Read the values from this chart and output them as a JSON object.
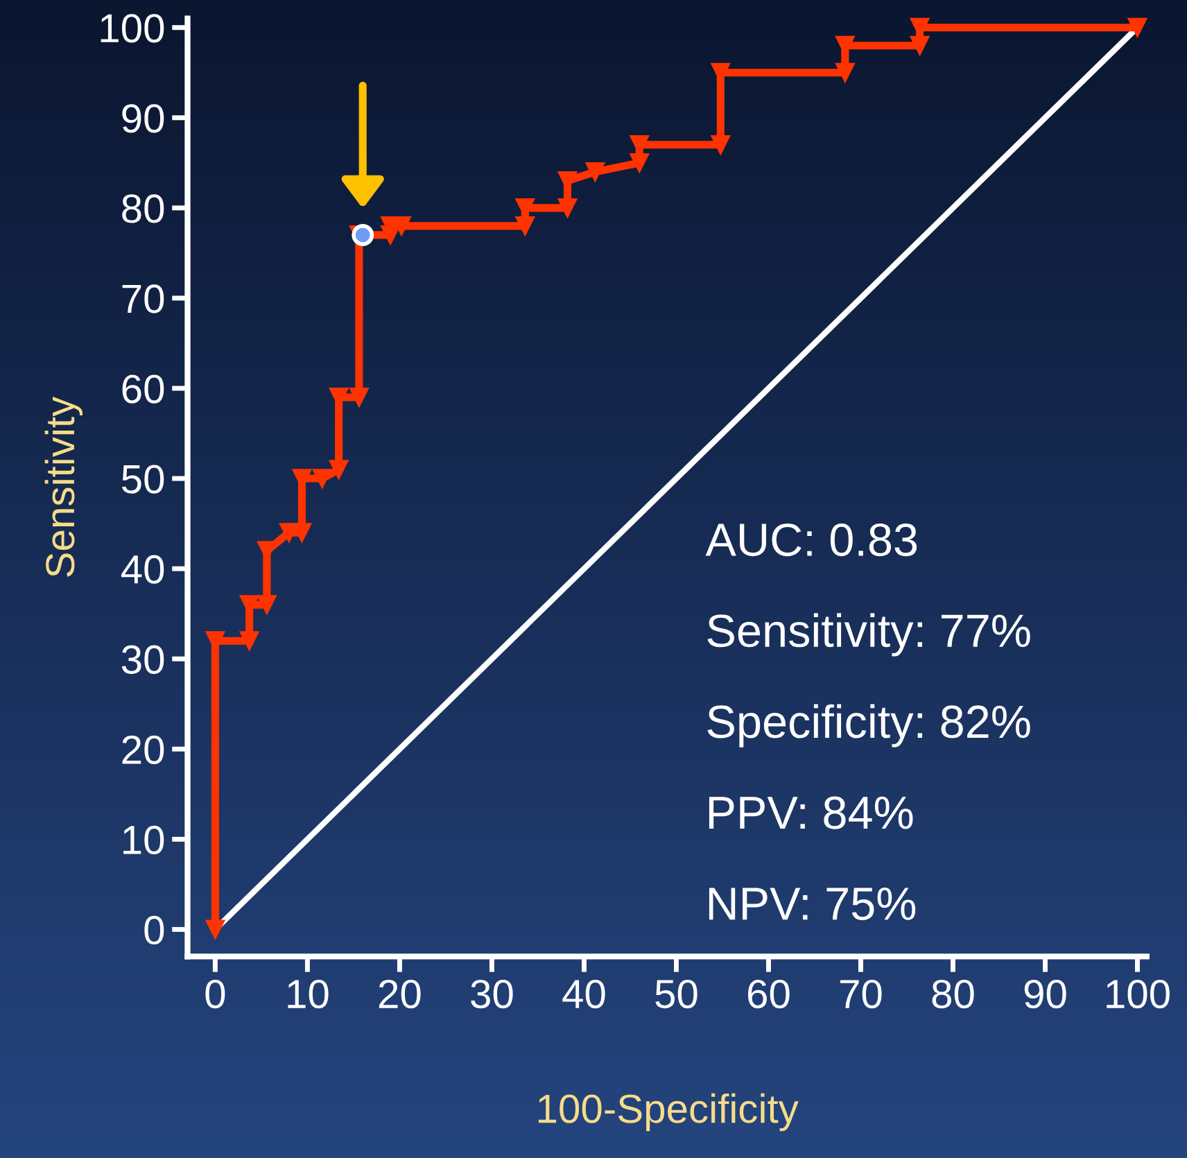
{
  "chart_data": {
    "type": "line",
    "xlabel": "100-Specificity",
    "ylabel": "Sensitivity",
    "xlim": [
      -3,
      101
    ],
    "ylim": [
      -3,
      101
    ],
    "xticks": [
      0,
      10,
      20,
      30,
      40,
      50,
      60,
      70,
      80,
      90,
      100
    ],
    "yticks": [
      0,
      10,
      20,
      30,
      40,
      50,
      60,
      70,
      80,
      90,
      100
    ],
    "grid": false,
    "legend": false,
    "series": [
      {
        "color": "#ff3300",
        "marker": "triangle",
        "x": [
          0,
          0,
          3.7,
          3.7,
          5.6,
          5.6,
          8,
          9.4,
          9.4,
          11.6,
          13.4,
          13.4,
          15.6,
          15.6,
          19,
          19,
          20.2,
          33.6,
          33.6,
          38.2,
          38.2,
          41.2,
          46,
          46,
          54.8,
          54.8,
          68.3,
          68.3,
          76.4,
          76.4,
          100
        ],
        "values": [
          0,
          32,
          32,
          36,
          36,
          42,
          44,
          44,
          50,
          50,
          51,
          59,
          59,
          77,
          77,
          78,
          78,
          78,
          80,
          80,
          83,
          84,
          85,
          87,
          87,
          95,
          95,
          98,
          98,
          100,
          100
        ]
      },
      {
        "color": "#ffffff",
        "marker": "none",
        "x": [
          0,
          100
        ],
        "values": [
          0,
          100
        ]
      },
      {
        "type": "scatter",
        "color": "#6f9cf5",
        "marker": "circle",
        "x": [
          16
        ],
        "values": [
          77
        ]
      }
    ],
    "annotations": [
      "AUC: 0.83",
      "Sensitivity: 77%",
      "Specificity: 82%",
      "PPV: 84%",
      "NPV: 75%"
    ]
  }
}
